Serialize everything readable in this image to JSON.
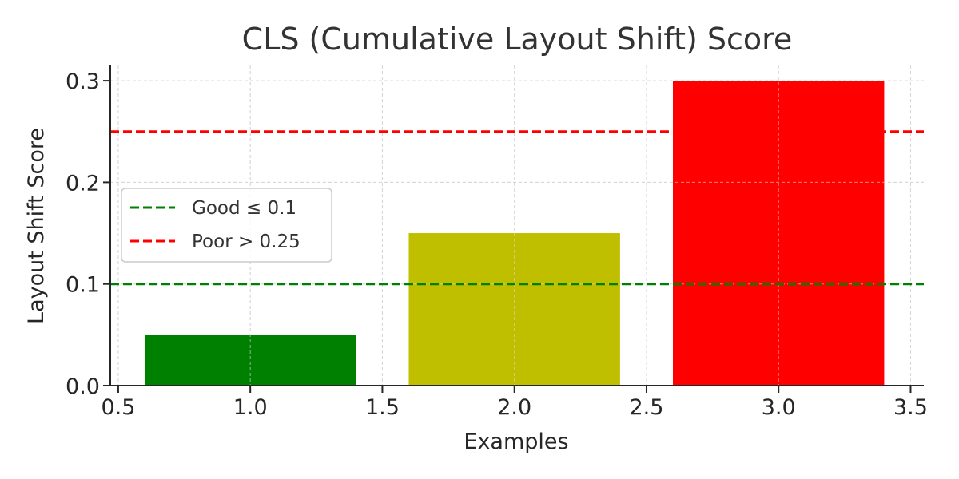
{
  "chart_data": {
    "type": "bar",
    "title": "CLS (Cumulative Layout Shift) Score",
    "xlabel": "Examples",
    "ylabel": "Layout Shift Score",
    "x": [
      1.0,
      2.0,
      3.0
    ],
    "values": [
      0.05,
      0.15,
      0.3
    ],
    "bar_width": 0.8,
    "bar_colors": [
      "#008000",
      "#bfbf00",
      "#ff0000"
    ],
    "xlim": [
      0.47,
      3.55
    ],
    "ylim": [
      0.0,
      0.315
    ],
    "xticks": [
      0.5,
      1.0,
      1.5,
      2.0,
      2.5,
      3.0,
      3.5
    ],
    "xtick_labels": [
      "0.5",
      "1.0",
      "1.5",
      "2.0",
      "2.5",
      "3.0",
      "3.5"
    ],
    "yticks": [
      0.0,
      0.1,
      0.2,
      0.3
    ],
    "ytick_labels": [
      "0.0",
      "0.1",
      "0.2",
      "0.3"
    ],
    "grid": true,
    "reference_lines": [
      {
        "label": "Good ≤ 0.1",
        "y": 0.1,
        "color": "#008000",
        "style": "dashed"
      },
      {
        "label": "Poor > 0.25",
        "y": 0.25,
        "color": "#ff0000",
        "style": "dashed"
      }
    ],
    "legend_position": "center-left"
  }
}
